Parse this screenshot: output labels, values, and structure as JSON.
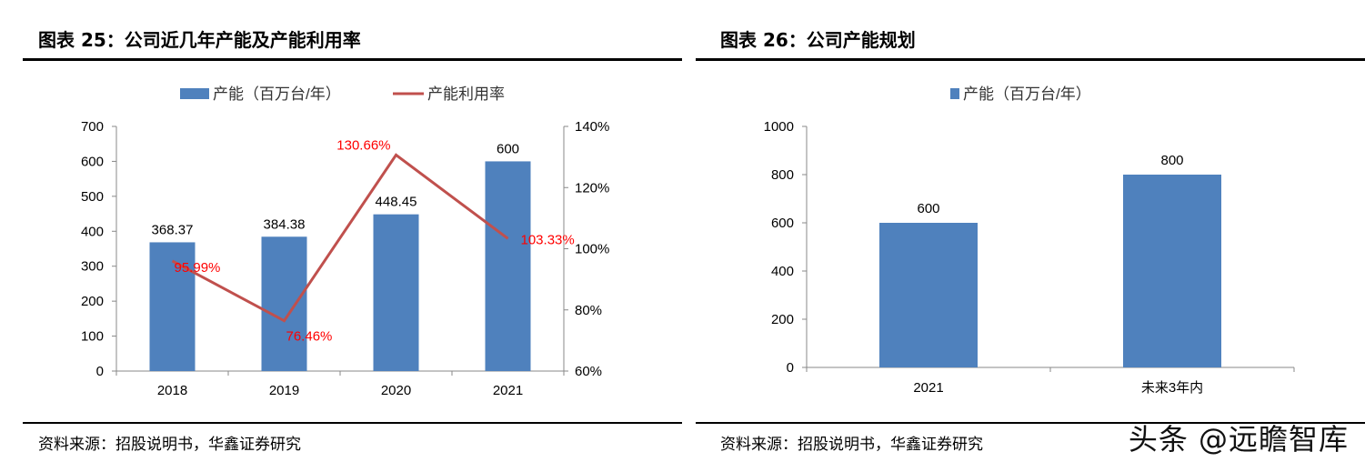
{
  "left": {
    "figure_title": "图表 25：公司近几年产能及产能利用率",
    "source": "资料来源：招股说明书，华鑫证券研究"
  },
  "right": {
    "figure_title": "图表 26：公司产能规划",
    "source": "资料来源：招股说明书，华鑫证券研究"
  },
  "watermark": "头条 @远瞻智库",
  "colors": {
    "bar": "#4F81BD",
    "line": "#C0504D",
    "line_label": "#FF0000"
  },
  "chart_data": [
    {
      "type": "bar+line",
      "categories": [
        "2018",
        "2019",
        "2020",
        "2021"
      ],
      "series": [
        {
          "name": "产能（百万台/年）",
          "type": "bar",
          "axis": "left",
          "values": [
            368.37,
            384.38,
            448.45,
            600
          ],
          "labels": [
            "368.37",
            "384.38",
            "448.45",
            "600"
          ]
        },
        {
          "name": "产能利用率",
          "type": "line",
          "axis": "right",
          "values": [
            95.99,
            76.46,
            130.66,
            103.33
          ],
          "labels": [
            "95.99%",
            "76.46%",
            "130.66%",
            "103.33%"
          ]
        }
      ],
      "ylim": [
        0,
        700
      ],
      "yticks": [
        "0",
        "100",
        "200",
        "300",
        "400",
        "500",
        "600",
        "700"
      ],
      "y2lim": [
        60,
        140
      ],
      "y2ticks": [
        "60%",
        "80%",
        "100%",
        "120%",
        "140%"
      ],
      "legend": "top",
      "grid": false
    },
    {
      "type": "bar",
      "categories": [
        "2021",
        "未来3年内"
      ],
      "series": [
        {
          "name": "产能（百万台/年）",
          "values": [
            600,
            800
          ],
          "labels": [
            "600",
            "800"
          ]
        }
      ],
      "ylim": [
        0,
        1000
      ],
      "yticks": [
        "0",
        "200",
        "400",
        "600",
        "800",
        "1000"
      ],
      "legend": "top",
      "grid": false
    }
  ]
}
